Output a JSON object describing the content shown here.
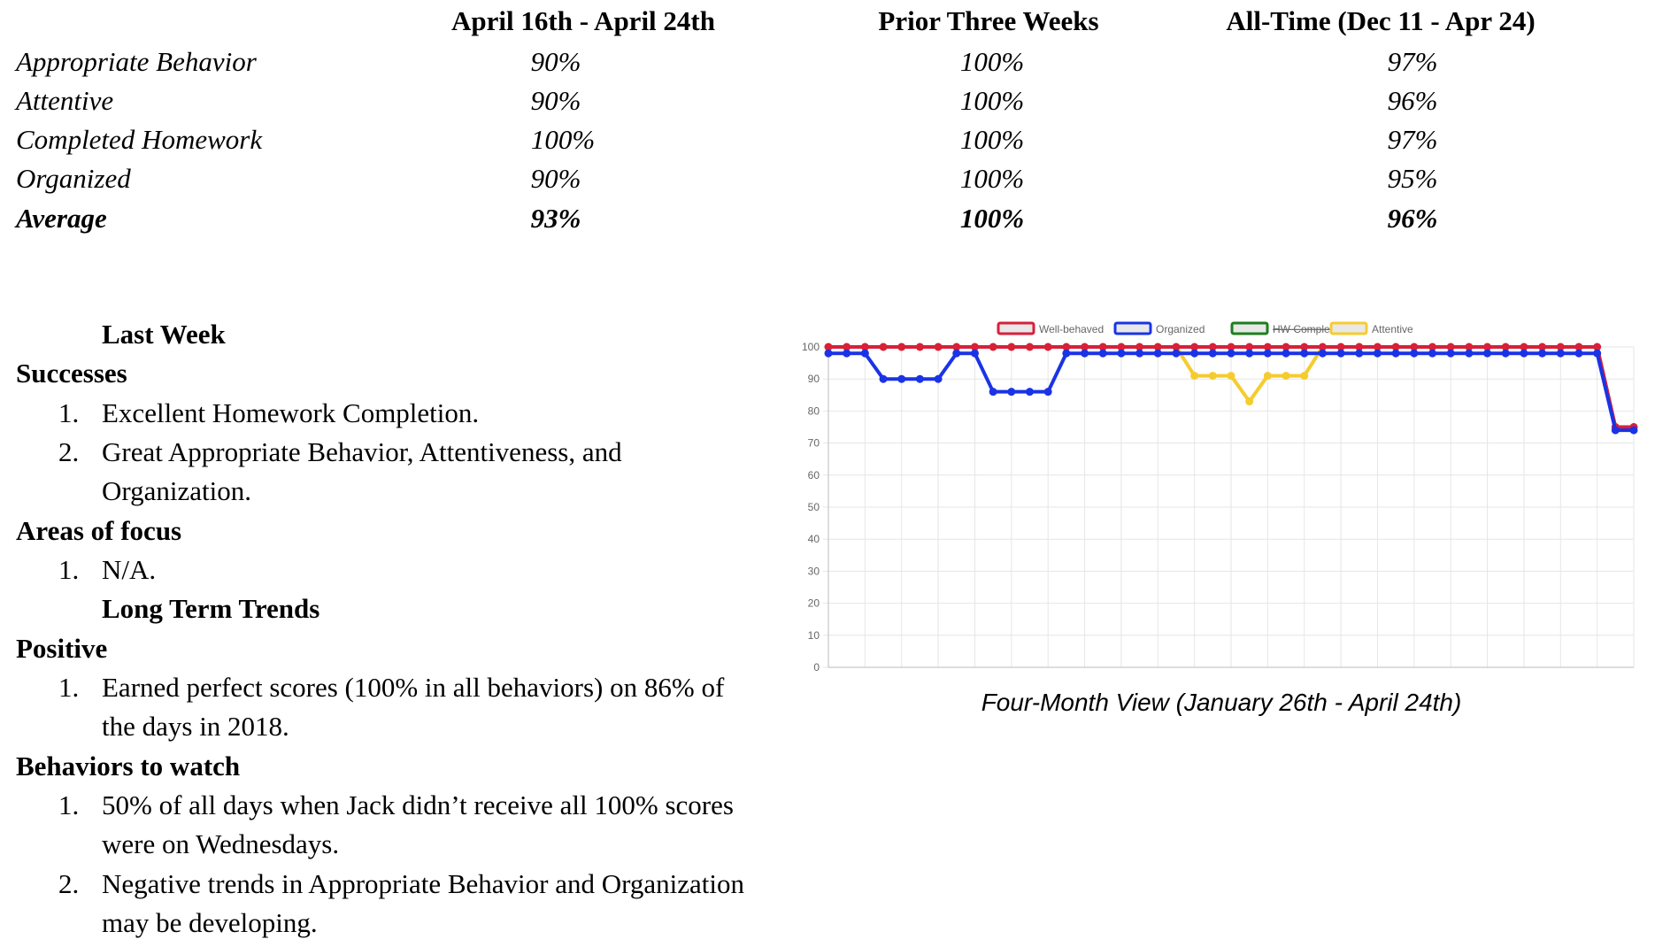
{
  "summary": {
    "headers": [
      "April 16th - April 24th",
      "Prior Three Weeks",
      "All-Time (Dec 11 - Apr 24)"
    ],
    "rows": [
      {
        "label": "Appropriate Behavior",
        "values": [
          "90%",
          "100%",
          "97%"
        ]
      },
      {
        "label": "Attentive",
        "values": [
          "90%",
          "100%",
          "96%"
        ]
      },
      {
        "label": "Completed Homework",
        "values": [
          "100%",
          "100%",
          "97%"
        ]
      },
      {
        "label": "Organized",
        "values": [
          "90%",
          "100%",
          "95%"
        ]
      },
      {
        "label": "Average",
        "values": [
          "93%",
          "100%",
          "96%"
        ]
      }
    ]
  },
  "report": {
    "last_week": "Last Week",
    "successes": "Successes",
    "success_items": [
      "Excellent Homework Completion.",
      "Great Appropriate Behavior, Attentiveness, and",
      "Organization."
    ],
    "areas_of_focus": "Areas of focus",
    "focus_items": [
      "N/A."
    ],
    "long_term": "Long Term Trends",
    "positive": "Positive",
    "positive_items": [
      "Earned perfect scores (100% in all behaviors) on 86% of",
      "the days in 2018."
    ],
    "behaviors_to_watch": "Behaviors to watch",
    "watch_items": [
      "50% of all days when Jack didn’t receive all 100% scores",
      "were on Wednesdays.",
      "Negative trends in Appropriate Behavior and Organization",
      "may be developing."
    ],
    "numbers": [
      "1.",
      "2."
    ]
  },
  "chart_data": {
    "type": "line",
    "caption": "Four-Month View (January 26th - April 24th)",
    "ylim": [
      0,
      100
    ],
    "yticks": [
      0,
      10,
      20,
      30,
      40,
      50,
      60,
      70,
      80,
      90,
      100
    ],
    "grid": true,
    "legend_position": "top-center",
    "series": [
      {
        "name": "Well-behaved",
        "color": "#d8203a",
        "hidden": false,
        "values": [
          100,
          100,
          100,
          100,
          100,
          100,
          100,
          100,
          100,
          100,
          100,
          100,
          100,
          100,
          100,
          100,
          100,
          100,
          100,
          100,
          100,
          100,
          100,
          100,
          100,
          100,
          100,
          100,
          100,
          100,
          100,
          100,
          100,
          100,
          100,
          100,
          100,
          100,
          100,
          100,
          100,
          100,
          100,
          75,
          75
        ]
      },
      {
        "name": "Organized",
        "color": "#1a33e6",
        "hidden": false,
        "values": [
          98,
          98,
          98,
          90,
          90,
          90,
          90,
          98,
          98,
          86,
          86,
          86,
          86,
          98,
          98,
          98,
          98,
          98,
          98,
          98,
          98,
          98,
          98,
          98,
          98,
          98,
          98,
          98,
          98,
          98,
          98,
          98,
          98,
          98,
          98,
          98,
          98,
          98,
          98,
          98,
          98,
          98,
          98,
          74,
          74
        ]
      },
      {
        "name": "HW Complete",
        "color": "#1e7e1e",
        "hidden": true,
        "values": []
      },
      {
        "name": "Attentive",
        "color": "#f5cc2e",
        "hidden": false,
        "values": [
          100,
          100,
          100,
          100,
          100,
          100,
          100,
          100,
          100,
          100,
          100,
          100,
          100,
          100,
          100,
          100,
          100,
          100,
          100,
          100,
          91,
          91,
          91,
          83,
          91,
          91,
          91,
          100,
          100,
          100,
          100,
          100,
          100,
          100,
          100,
          100,
          100,
          100,
          100,
          100,
          100,
          100,
          100,
          75,
          75
        ]
      }
    ]
  }
}
